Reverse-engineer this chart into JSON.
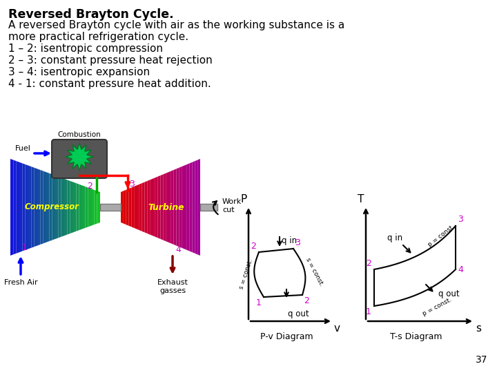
{
  "title": "Reversed Brayton Cycle.",
  "line1": "A reversed Brayton cycle with air as the working substance is a",
  "line2": "more practical refrigeration cycle.",
  "line3": "1 – 2: isentropic compression",
  "line4": "2 – 3: constant pressure heat rejection",
  "line5": "3 – 4: isentropic expansion",
  "line6": "4 - 1: constant pressure heat addition.",
  "background_color": "#ffffff",
  "point_color": "#cc00cc",
  "text_color": "#000000",
  "page_number": "37"
}
